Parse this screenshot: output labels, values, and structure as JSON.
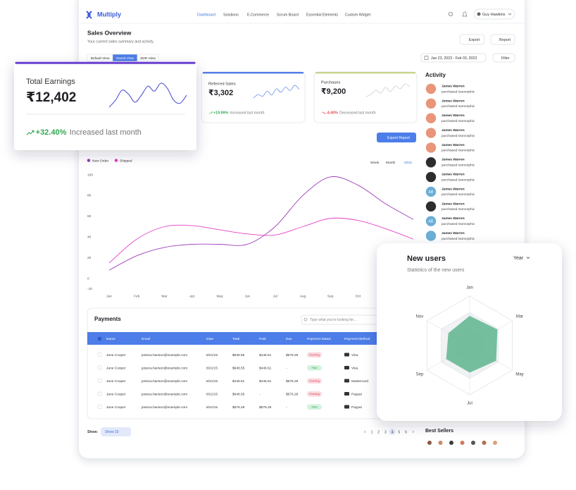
{
  "nav": {
    "logo": "Multiply",
    "items": [
      "Dashboard",
      "Solutions",
      "E-Commerce",
      "Scrum Board",
      "Essential Elements",
      "Custom Widget"
    ],
    "active": 0,
    "user": "Guy Hawkins"
  },
  "header": {
    "title": "Sales Overview",
    "subtitle": "Your current sales summary and activity.",
    "buttons": [
      "Export",
      "Report"
    ],
    "tabs": [
      "Default View",
      "Saved View",
      "SDR View"
    ],
    "active_tab": 1,
    "date_range": "Jan 23, 2023 - Feb 03, 2023",
    "filter": "Filter"
  },
  "cards": [
    {
      "title": "Total Earnings",
      "value": "₹12,402",
      "change": "+32.40%",
      "note": "Increased last month",
      "trend": "up",
      "accent": "#6a3fd1",
      "change_color": "#34a853",
      "spark_color": "#5457d3",
      "spark": [
        5,
        12,
        22,
        18,
        10,
        17,
        26,
        21,
        29,
        24,
        12,
        9,
        17
      ]
    },
    {
      "title": "Referred Sales",
      "value": "₹3,302",
      "change": "+19.99%",
      "note": "Increased last month",
      "trend": "up",
      "accent": "#4f7ce8",
      "change_color": "#34a853",
      "spark_color": "#4f7ce8",
      "spark": [
        8,
        14,
        11,
        20,
        13,
        24,
        18,
        27,
        21,
        30,
        23
      ]
    },
    {
      "title": "Purchases",
      "value": "₹9,200",
      "change": "-4.40%",
      "note": "Decreased last month",
      "trend": "down",
      "accent": "#c7d48e",
      "change_color": "#e5484d",
      "spark_color": "#c8c8d2",
      "spark": [
        10,
        13,
        19,
        15,
        23,
        17,
        25,
        21,
        28,
        24
      ]
    }
  ],
  "export_report": "Export Report",
  "sales_chart": {
    "type": "line",
    "categories": [
      "Jan",
      "Feb",
      "Mar",
      "Apr",
      "May",
      "Jun",
      "Jul",
      "Aug",
      "Sep",
      "Oct",
      "Nov",
      "Dec"
    ],
    "series": [
      {
        "name": "New Order",
        "color": "#9c3fb8",
        "values": [
          8,
          22,
          30,
          33,
          33,
          33,
          50,
          80,
          98,
          90,
          72,
          57
        ]
      },
      {
        "name": "Shipped",
        "color": "#e53fc8",
        "values": [
          15,
          38,
          50,
          51,
          47,
          43,
          42,
          50,
          58,
          56,
          48,
          38
        ]
      }
    ],
    "ylim": [
      -10,
      100
    ],
    "yticks": [
      -10,
      0,
      20,
      40,
      60,
      80,
      100
    ],
    "periods": [
      "Week",
      "Month",
      "2023"
    ],
    "active_period": 2
  },
  "activity": {
    "title": "Activity",
    "items": [
      {
        "name": "James Warren",
        "action": "purchased Isomorphic",
        "avatar_color": "#e8957a"
      },
      {
        "name": "James Warren",
        "action": "purchased Isomorphic",
        "avatar_color": "#e8957a"
      },
      {
        "name": "James Warren",
        "action": "purchased Isomorphic",
        "avatar_color": "#e8957a"
      },
      {
        "name": "James Warren",
        "action": "purchased Isomorphic",
        "avatar_color": "#e8957a"
      },
      {
        "name": "James Warren",
        "action": "purchased Isomorphic",
        "avatar_color": "#e8957a"
      },
      {
        "name": "James Warren",
        "action": "purchased Isomorphic",
        "avatar_color": "#2d2d2d"
      },
      {
        "name": "James Warren",
        "action": "purchased Isomorphic",
        "avatar_color": "#2d2d2d"
      },
      {
        "name": "James Warren",
        "action": "purchased Isomorphic",
        "avatar_color": "#6aaed6",
        "initials": "AB"
      },
      {
        "name": "James Warren",
        "action": "purchased Isomorphic",
        "avatar_color": "#2d2d2d"
      },
      {
        "name": "James Warren",
        "action": "purchased Isomorphic",
        "avatar_color": "#6aaed6",
        "initials": "AB"
      },
      {
        "name": "James Warren",
        "action": "purchased Isomorphic",
        "avatar_color": "#6aaed6"
      }
    ]
  },
  "payments": {
    "title": "Payments",
    "search_placeholder": "Type what you're looking for...",
    "columns": [
      "Name",
      "Email",
      "Date",
      "Total",
      "Paid",
      "Due",
      "Payment Status",
      "Payment Method"
    ],
    "rows": [
      {
        "name": "Jane Cooper",
        "email": "jessica.hanson@example.com",
        "date": "8/21/15",
        "total": "$948.55",
        "paid": "$446.61",
        "due": "$576.28",
        "status": "Pending",
        "status_color": "#fbd9dd",
        "status_text": "#d6455d",
        "method": "Visa"
      },
      {
        "name": "Jane Cooper",
        "email": "jessica.hanson@example.com",
        "date": "8/21/15",
        "total": "$948.55",
        "paid": "$446.61",
        "due": "-",
        "status": "Paid",
        "status_color": "#d3f2dc",
        "status_text": "#2f9e5b",
        "method": "Visa"
      },
      {
        "name": "Jane Cooper",
        "email": "jessica.hanson@example.com",
        "date": "8/21/15",
        "total": "$446.61",
        "paid": "$446.61",
        "due": "$576.28",
        "status": "Pending",
        "status_color": "#fbd9dd",
        "status_text": "#d6455d",
        "method": "Mastercard"
      },
      {
        "name": "Jane Cooper",
        "email": "jessica.hanson@example.com",
        "date": "8/21/15",
        "total": "$948.55",
        "paid": "-",
        "due": "$576.28",
        "status": "Pending",
        "status_color": "#fbd9dd",
        "status_text": "#d6455d",
        "method": "Paypal"
      },
      {
        "name": "Jane Cooper",
        "email": "jessica.hanson@example.com",
        "date": "8/21/15",
        "total": "$576.28",
        "paid": "$576.28",
        "due": "-",
        "status": "Paid",
        "status_color": "#d3f2dc",
        "status_text": "#2f9e5b",
        "method": "Paypal"
      }
    ]
  },
  "pagination": {
    "show_label": "Show:",
    "page_size": "Show 10",
    "pages": [
      1,
      2,
      3,
      4,
      5,
      6
    ],
    "current": 4
  },
  "best_sellers": {
    "title": "Best Sellers",
    "avatars": [
      "#8a5a44",
      "#c98a6b",
      "#3b3b3b",
      "#d07a5a",
      "#555555",
      "#b56b50",
      "#e0a080"
    ]
  },
  "new_users": {
    "title": "New users",
    "period": "Year",
    "subtitle": "Statistics of the new users",
    "chart": {
      "type": "radar",
      "categories": [
        "Jan",
        "Mar",
        "May",
        "Jul",
        "Sep",
        "Nov"
      ],
      "values": [
        60,
        65,
        62,
        55,
        55,
        50
      ],
      "rlim": [
        0,
        100
      ],
      "color": "#6dbb99"
    }
  }
}
